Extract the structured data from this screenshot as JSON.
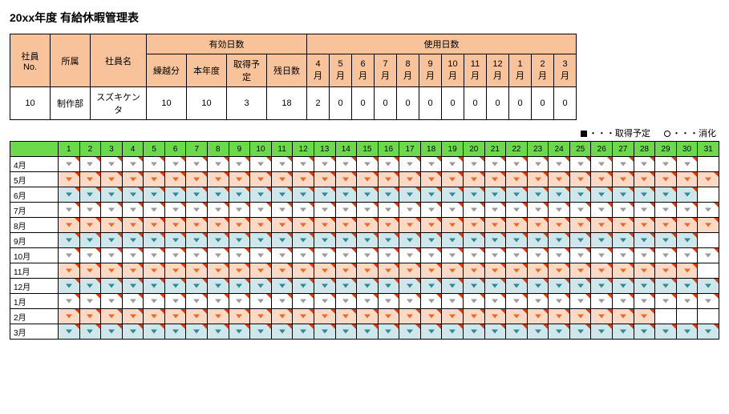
{
  "title": "20xx年度 有給休暇管理表",
  "summary": {
    "headers_top": {
      "emp_no": "社員No.",
      "dept": "所属",
      "name": "社員名",
      "valid": "有効日数",
      "used": "使用日数"
    },
    "headers_sub_valid": [
      "繰越分",
      "本年度",
      "取得予定",
      "残日数"
    ],
    "headers_sub_used": [
      "4月",
      "5月",
      "6月",
      "7月",
      "8月",
      "9月",
      "10月",
      "11月",
      "12月",
      "1月",
      "2月",
      "3月"
    ],
    "row": {
      "emp_no": "10",
      "dept": "制作部",
      "name": "スズキケンタ",
      "valid": [
        "10",
        "10",
        "3",
        "18"
      ],
      "used": [
        "2",
        "0",
        "0",
        "0",
        "0",
        "0",
        "0",
        "0",
        "0",
        "0",
        "0",
        "0"
      ]
    },
    "header_bg": "#f8c39a"
  },
  "legend": {
    "square_label": "・・・取得予定",
    "circle_label": "・・・消化"
  },
  "calendar": {
    "header_bg": "#6bd94a",
    "colors": {
      "none": "#ffffff",
      "pink": "#fbd9c4",
      "blue": "#cfe7ea"
    },
    "arrow_colors": {
      "gray": "#9a9a9a",
      "orange": "#e56b2b",
      "teal": "#2e8a93"
    },
    "days": 31,
    "rows": [
      {
        "label": "4月",
        "row_color": "none",
        "arrow": "gray",
        "blank_cols": [
          30
        ]
      },
      {
        "label": "5月",
        "row_color": "pink",
        "arrow": "orange",
        "blank_cols": []
      },
      {
        "label": "6月",
        "row_color": "blue",
        "arrow": "teal",
        "blank_cols": [
          30
        ]
      },
      {
        "label": "7月",
        "row_color": "none",
        "arrow": "gray",
        "blank_cols": []
      },
      {
        "label": "8月",
        "row_color": "pink",
        "arrow": "orange",
        "blank_cols": []
      },
      {
        "label": "9月",
        "row_color": "blue",
        "arrow": "teal",
        "blank_cols": [
          30
        ]
      },
      {
        "label": "10月",
        "row_color": "none",
        "arrow": "gray",
        "blank_cols": []
      },
      {
        "label": "11月",
        "row_color": "pink",
        "arrow": "orange",
        "blank_cols": [
          30
        ]
      },
      {
        "label": "12月",
        "row_color": "blue",
        "arrow": "teal",
        "blank_cols": []
      },
      {
        "label": "1月",
        "row_color": "none",
        "arrow": "gray",
        "blank_cols": []
      },
      {
        "label": "2月",
        "row_color": "pink",
        "arrow": "orange",
        "blank_cols": [
          28,
          29,
          30
        ]
      },
      {
        "label": "3月",
        "row_color": "blue",
        "arrow": "teal",
        "blank_cols": []
      }
    ]
  }
}
